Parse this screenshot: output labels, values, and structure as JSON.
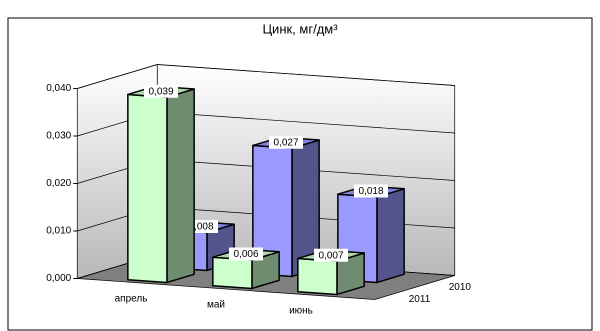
{
  "chart_data": {
    "type": "bar3d",
    "title": "Цинк, мг/дм³",
    "categories": [
      "апрель",
      "май",
      "июнь"
    ],
    "series": [
      {
        "name": "2010",
        "color": "#9999ff",
        "values": [
          0.008,
          0.027,
          0.018
        ],
        "value_labels": [
          "0,008",
          "0,027",
          "0,018"
        ]
      },
      {
        "name": "2011",
        "color": "#ccffcc",
        "values": [
          0.039,
          0.006,
          0.007
        ],
        "value_labels": [
          "0,039",
          "0,006",
          "0,007"
        ]
      }
    ],
    "ylim": [
      0,
      0.04
    ],
    "yticks": [
      {
        "value": 0,
        "label": "0,000"
      },
      {
        "value": 0.01,
        "label": "0,010"
      },
      {
        "value": 0.02,
        "label": "0,020"
      },
      {
        "value": 0.03,
        "label": "0,030"
      },
      {
        "value": 0.04,
        "label": "0,040"
      }
    ],
    "grid": true
  }
}
